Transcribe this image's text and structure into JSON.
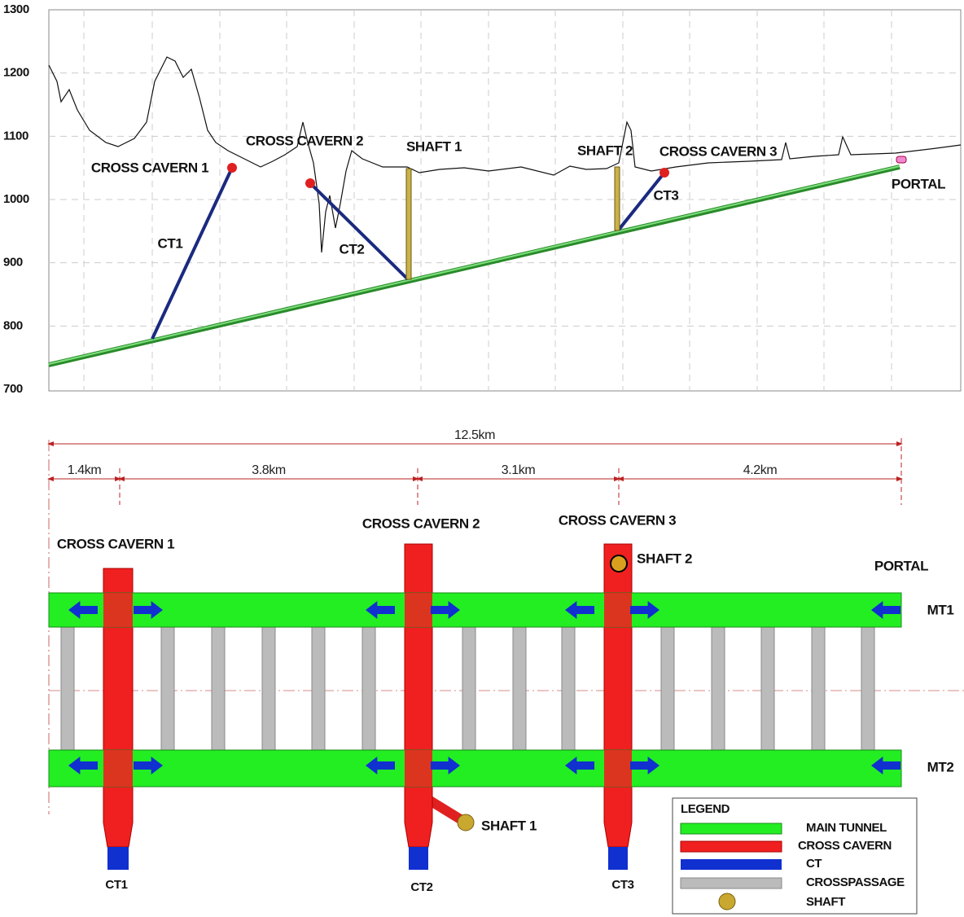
{
  "profile": {
    "yticks": [
      1300,
      1200,
      1100,
      1000,
      900,
      800,
      700
    ],
    "labels": {
      "cross_cavern_1": "CROSS CAVERN 1",
      "cross_cavern_2": "CROSS CAVERN 2",
      "shaft_1": "SHAFT 1",
      "shaft_2": "SHAFT 2",
      "cross_cavern_3": "CROSS CAVERN 3",
      "portal": "PORTAL",
      "ct1": "CT1",
      "ct2": "CT2",
      "ct3": "CT3"
    }
  },
  "plan": {
    "total": "12.5km",
    "segments": [
      "1.4km",
      "3.8km",
      "3.1km",
      "4.2km"
    ],
    "labels": {
      "cross_cavern_1": "CROSS CAVERN 1",
      "cross_cavern_2": "CROSS CAVERN 2",
      "cross_cavern_3": "CROSS CAVERN 3",
      "shaft_2": "SHAFT 2",
      "portal": "PORTAL",
      "mt1": "MT1",
      "mt2": "MT2",
      "shaft_1": "SHAFT 1",
      "ct1": "CT1",
      "ct2": "CT2",
      "ct3": "CT3"
    }
  },
  "legend": {
    "title": "LEGEND",
    "items": [
      "MAIN TUNNEL",
      "CROSS CAVERN",
      "CT",
      "CROSSPASSAGE",
      "SHAFT"
    ]
  }
}
